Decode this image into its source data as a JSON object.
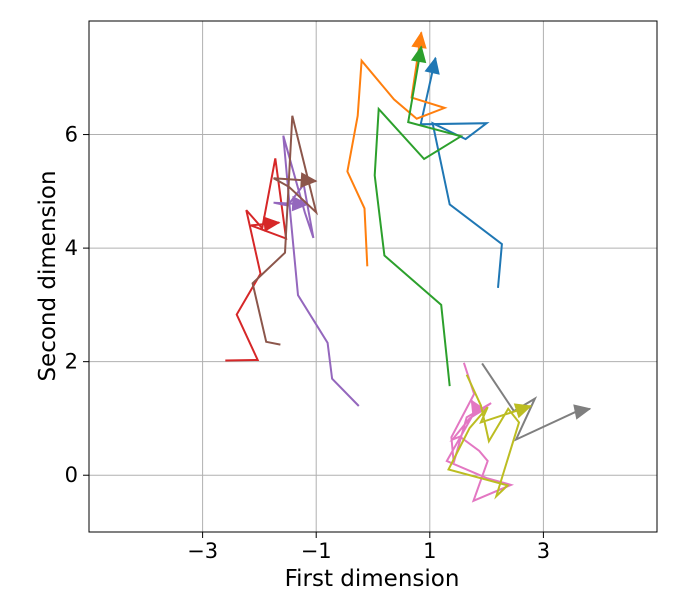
{
  "chart_data": {
    "type": "line",
    "title": "",
    "xlabel": "First dimension",
    "ylabel": "Second dimension",
    "xlim": [
      -5,
      5
    ],
    "ylim": [
      -1,
      8
    ],
    "xticks": [
      -3,
      -1,
      1,
      3
    ],
    "xtick_labels": [
      "−3",
      "−1",
      "1",
      "3"
    ],
    "yticks": [
      0,
      2,
      4,
      6
    ],
    "ytick_labels": [
      "0",
      "2",
      "4",
      "6"
    ],
    "grid": true,
    "legend": "none",
    "series": [
      {
        "color": "#1f77b4",
        "points": [
          [
            2.2,
            3.3
          ],
          [
            2.27,
            4.07
          ],
          [
            1.35,
            4.77
          ],
          [
            1.05,
            6.2
          ],
          [
            1.63,
            5.92
          ],
          [
            2.0,
            6.2
          ],
          [
            0.84,
            6.18
          ],
          [
            1.1,
            7.35
          ]
        ]
      },
      {
        "color": "#ff7f0e",
        "points": [
          [
            -0.1,
            3.68
          ],
          [
            -0.15,
            4.7
          ],
          [
            -0.45,
            5.35
          ],
          [
            -0.27,
            6.33
          ],
          [
            -0.2,
            7.3
          ],
          [
            0.37,
            6.62
          ],
          [
            0.77,
            6.28
          ],
          [
            1.26,
            6.47
          ],
          [
            0.68,
            6.65
          ],
          [
            0.85,
            7.8
          ]
        ]
      },
      {
        "color": "#2ca02c",
        "points": [
          [
            1.35,
            1.57
          ],
          [
            1.2,
            3.0
          ],
          [
            0.2,
            3.87
          ],
          [
            0.03,
            5.28
          ],
          [
            0.1,
            6.45
          ],
          [
            0.9,
            5.57
          ],
          [
            1.55,
            5.97
          ],
          [
            0.62,
            6.22
          ],
          [
            0.85,
            7.55
          ]
        ]
      },
      {
        "color": "#d62728",
        "points": [
          [
            -2.6,
            2.02
          ],
          [
            -2.03,
            2.03
          ],
          [
            -2.4,
            2.83
          ],
          [
            -1.98,
            3.55
          ],
          [
            -2.23,
            4.67
          ],
          [
            -1.95,
            4.35
          ],
          [
            -1.72,
            5.58
          ],
          [
            -1.53,
            4.17
          ],
          [
            -2.15,
            4.4
          ],
          [
            -1.65,
            4.45
          ]
        ]
      },
      {
        "color": "#9467bd",
        "points": [
          [
            -0.25,
            1.22
          ],
          [
            -0.72,
            1.7
          ],
          [
            -0.8,
            2.33
          ],
          [
            -1.32,
            3.17
          ],
          [
            -1.45,
            4.55
          ],
          [
            -1.58,
            5.98
          ],
          [
            -1.2,
            4.63
          ],
          [
            -1.05,
            4.18
          ],
          [
            -1.22,
            5.12
          ],
          [
            -1.5,
            4.75
          ],
          [
            -1.75,
            4.8
          ],
          [
            -1.15,
            4.77
          ]
        ]
      },
      {
        "color": "#8c564b",
        "points": [
          [
            -1.63,
            2.3
          ],
          [
            -1.88,
            2.35
          ],
          [
            -2.12,
            3.38
          ],
          [
            -1.55,
            3.92
          ],
          [
            -1.42,
            6.33
          ],
          [
            -1.0,
            4.63
          ],
          [
            -1.48,
            5.08
          ],
          [
            -1.75,
            5.23
          ],
          [
            -1.0,
            5.18
          ]
        ]
      },
      {
        "color": "#e377c2",
        "points": [
          [
            1.6,
            1.98
          ],
          [
            1.78,
            1.43
          ],
          [
            1.38,
            0.67
          ],
          [
            1.42,
            0.22
          ],
          [
            1.65,
            1.02
          ],
          [
            2.08,
            1.27
          ],
          [
            1.7,
            1.0
          ],
          [
            1.4,
            0.63
          ],
          [
            1.53,
            0.68
          ],
          [
            1.87,
            0.43
          ],
          [
            2.02,
            0.25
          ],
          [
            1.77,
            -0.45
          ],
          [
            2.43,
            -0.17
          ],
          [
            2.0,
            -0.05
          ],
          [
            1.3,
            0.25
          ],
          [
            1.82,
            1.17
          ],
          [
            1.73,
            1.32
          ]
        ]
      },
      {
        "color": "#7f7f7f",
        "points": [
          [
            1.92,
            1.97
          ],
          [
            2.48,
            1.13
          ],
          [
            2.85,
            1.35
          ],
          [
            2.52,
            0.63
          ],
          [
            3.58,
            1.12
          ],
          [
            3.82,
            1.17
          ]
        ]
      },
      {
        "color": "#bcbd22",
        "points": [
          [
            1.65,
            1.77
          ],
          [
            1.9,
            1.23
          ],
          [
            2.04,
            0.6
          ],
          [
            2.38,
            1.17
          ],
          [
            2.57,
            0.93
          ],
          [
            2.17,
            -0.37
          ],
          [
            2.37,
            -0.18
          ],
          [
            1.33,
            0.1
          ],
          [
            1.7,
            0.83
          ],
          [
            2.02,
            1.2
          ],
          [
            1.9,
            0.93
          ],
          [
            2.78,
            1.22
          ]
        ]
      }
    ]
  }
}
